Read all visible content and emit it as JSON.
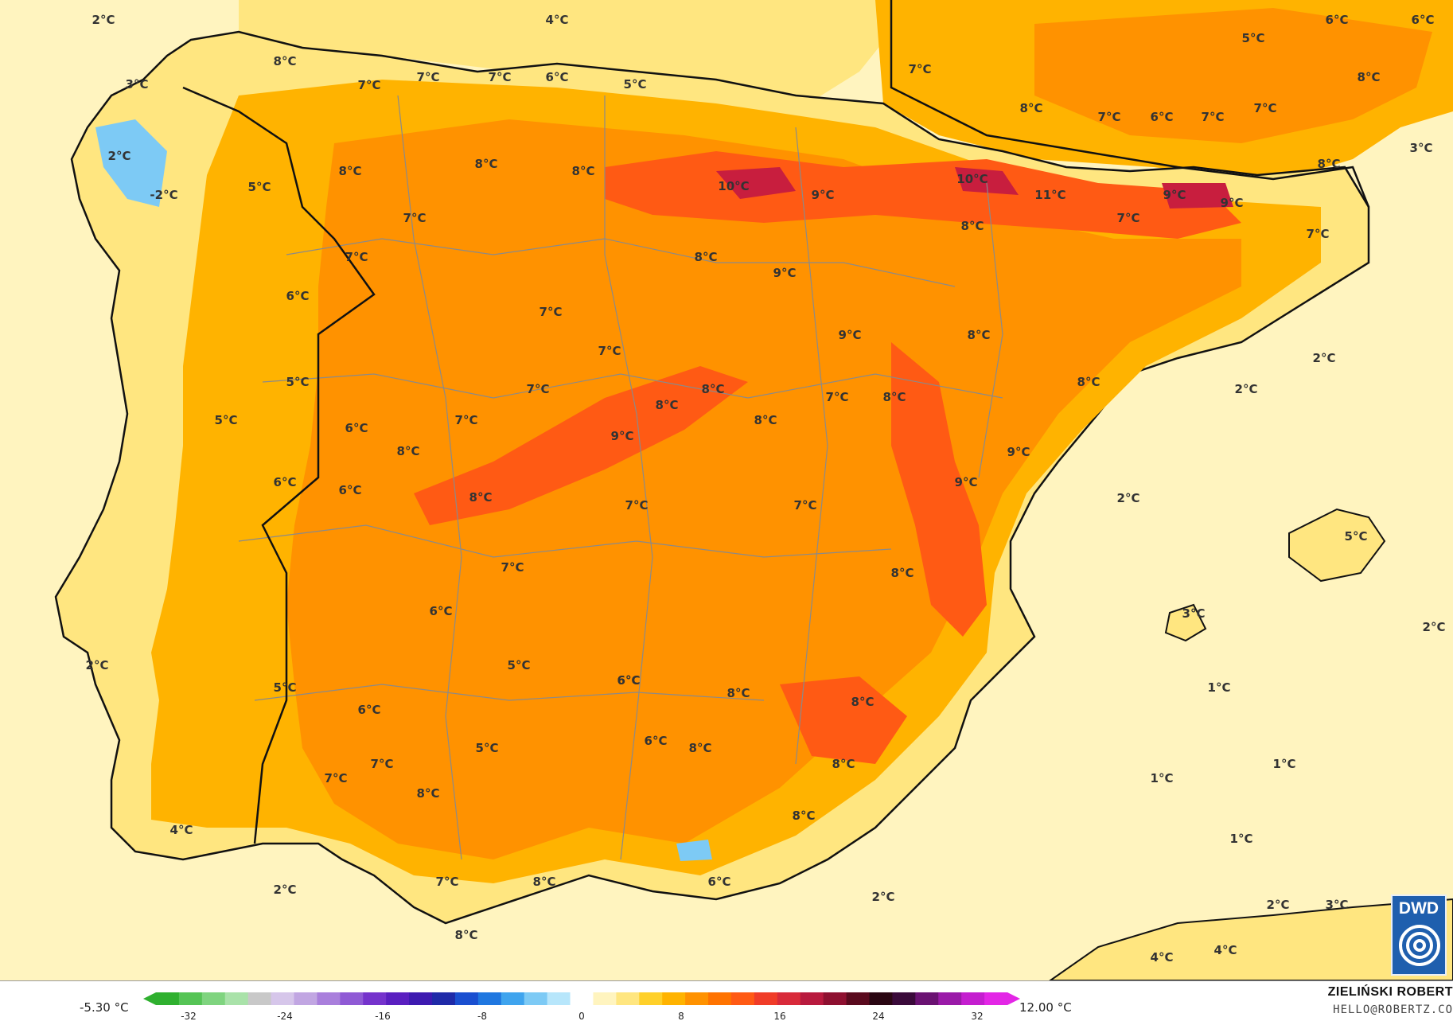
{
  "map": {
    "temperature_labels": [
      {
        "text": "2°C"
      },
      {
        "text": "4°C"
      },
      {
        "text": "6°C"
      },
      {
        "text": "6°C"
      },
      {
        "text": "5°C"
      },
      {
        "text": "3°C"
      },
      {
        "text": "8°C"
      },
      {
        "text": "7°C"
      },
      {
        "text": "7°C"
      },
      {
        "text": "7°C"
      },
      {
        "text": "6°C"
      },
      {
        "text": "5°C"
      },
      {
        "text": "7°C"
      },
      {
        "text": "8°C"
      },
      {
        "text": "8°C"
      },
      {
        "text": "7°C"
      },
      {
        "text": "6°C"
      },
      {
        "text": "7°C"
      },
      {
        "text": "7°C"
      },
      {
        "text": "3°C"
      },
      {
        "text": "2°C"
      },
      {
        "text": "-2°C"
      },
      {
        "text": "5°C"
      },
      {
        "text": "8°C"
      },
      {
        "text": "7°C"
      },
      {
        "text": "8°C"
      },
      {
        "text": "8°C"
      },
      {
        "text": "10°C"
      },
      {
        "text": "9°C"
      },
      {
        "text": "10°C"
      },
      {
        "text": "11°C"
      },
      {
        "text": "9°C"
      },
      {
        "text": "9°C"
      },
      {
        "text": "7°C"
      },
      {
        "text": "8°C"
      },
      {
        "text": "7°C"
      },
      {
        "text": "8°C"
      },
      {
        "text": "8°C"
      },
      {
        "text": "9°C"
      },
      {
        "text": "7°C"
      },
      {
        "text": "6°C"
      },
      {
        "text": "7°C"
      },
      {
        "text": "9°C"
      },
      {
        "text": "8°C"
      },
      {
        "text": "7°C"
      },
      {
        "text": "5°C"
      },
      {
        "text": "7°C"
      },
      {
        "text": "8°C"
      },
      {
        "text": "8°C"
      },
      {
        "text": "7°C"
      },
      {
        "text": "8°C"
      },
      {
        "text": "8°C"
      },
      {
        "text": "5°C"
      },
      {
        "text": "6°C"
      },
      {
        "text": "7°C"
      },
      {
        "text": "9°C"
      },
      {
        "text": "8°C"
      },
      {
        "text": "9°C"
      },
      {
        "text": "9°C"
      },
      {
        "text": "6°C"
      },
      {
        "text": "6°C"
      },
      {
        "text": "8°C"
      },
      {
        "text": "7°C"
      },
      {
        "text": "7°C"
      },
      {
        "text": "8°C"
      },
      {
        "text": "8°C"
      },
      {
        "text": "2°C"
      },
      {
        "text": "2°C"
      },
      {
        "text": "2°C"
      },
      {
        "text": "5°C"
      },
      {
        "text": "7°C"
      },
      {
        "text": "6°C"
      },
      {
        "text": "3°C"
      },
      {
        "text": "2°C"
      },
      {
        "text": "5°C"
      },
      {
        "text": "6°C"
      },
      {
        "text": "8°C"
      },
      {
        "text": "2°C"
      },
      {
        "text": "1°C"
      },
      {
        "text": "6°C"
      },
      {
        "text": "5°C"
      },
      {
        "text": "8°C"
      },
      {
        "text": "8°C"
      },
      {
        "text": "6°C"
      },
      {
        "text": "7°C"
      },
      {
        "text": "8°C"
      },
      {
        "text": "1°C"
      },
      {
        "text": "1°C"
      },
      {
        "text": "6°C"
      },
      {
        "text": "5°C"
      },
      {
        "text": "7°C"
      },
      {
        "text": "8°C"
      },
      {
        "text": "4°C"
      },
      {
        "text": "1°C"
      },
      {
        "text": "8°C"
      },
      {
        "text": "2°C"
      },
      {
        "text": "7°C"
      },
      {
        "text": "8°C"
      },
      {
        "text": "6°C"
      },
      {
        "text": "2°C"
      },
      {
        "text": "2°C"
      },
      {
        "text": "3°C"
      },
      {
        "text": "8°C"
      },
      {
        "text": "4°C"
      },
      {
        "text": "4°C"
      }
    ]
  },
  "legend": {
    "min_value": "-5.30 °C",
    "max_value": "12.00 °C",
    "ticks": [
      "-32",
      "-24",
      "-16",
      "-8",
      "0",
      "8",
      "16",
      "24",
      "32"
    ],
    "colors": [
      "#2fb02f",
      "#55c455",
      "#7fd47f",
      "#a9e2a9",
      "#c8c8c8",
      "#d6c6ea",
      "#c1a6e2",
      "#a97fdc",
      "#8f5ad5",
      "#7533cc",
      "#5a1fc0",
      "#3d1ab0",
      "#1f2aa8",
      "#1a4fd0",
      "#1f77e0",
      "#3fa4ee",
      "#7dcaf5",
      "#b7e6fb",
      "#ffffff",
      "#fff4bf",
      "#ffe680",
      "#ffd02a",
      "#ffb300",
      "#ff9200",
      "#ff7300",
      "#ff5a14",
      "#f03c28",
      "#d82a3a",
      "#b81a3e",
      "#8e1030",
      "#5a0a1e",
      "#2a0612",
      "#3a0a3a",
      "#6a1272",
      "#9a1aa8",
      "#c41ecf",
      "#e326e6"
    ]
  },
  "branding": {
    "logo_text": "DWD",
    "author": "ZIELIŃSKI ROBERT",
    "email": "HELLO@ROBERTZ.CO"
  },
  "palette": {
    "sea": "#fff4bf",
    "low": "#ffe680",
    "mid": "#ffb300",
    "high": "#ff9200",
    "hot": "#ff5a14",
    "hotter": "#e83a2a",
    "peak": "#c81e3e",
    "cold": "#7dcaf5",
    "coast": "#111111",
    "borders": "#8a8a8a"
  }
}
